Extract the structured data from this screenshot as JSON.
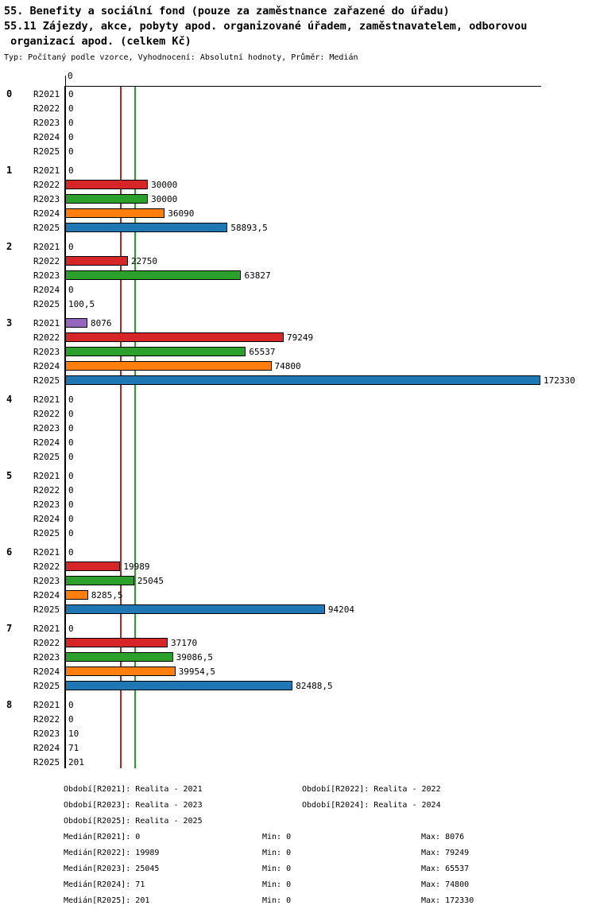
{
  "header": {
    "title_line1": "55. Benefity a sociální fond (pouze za zaměstnance zařazené do úřadu)",
    "title_line2": "55.11 Zájezdy, akce, pobyty apod. organizované úřadem, zaměstnavatelem, odborovou",
    "title_line3": " organizací apod. (celkem Kč)",
    "meta": "Typ: Počítaný podle vzorce, Vyhodnocení: Absolutní hodnoty, Průměr: Medián"
  },
  "chart_data": {
    "type": "bar",
    "orientation": "horizontal",
    "title": "55.11 Zájezdy, akce, pobyty apod. organizované úřadem, zaměstnavatelem, odborovou organizací apod. (celkem Kč)",
    "axis_origin_label": "0",
    "xlim": [
      0,
      172330
    ],
    "series": [
      "R2021",
      "R2022",
      "R2023",
      "R2024",
      "R2025"
    ],
    "series_colors": {
      "R2021": "#9467bd",
      "R2022": "#d62728",
      "R2023": "#2ca02c",
      "R2024": "#ff7f0e",
      "R2025": "#1f77b4"
    },
    "groups": [
      {
        "label": "0",
        "rows": [
          {
            "series": "R2021",
            "value": 0,
            "display": "0"
          },
          {
            "series": "R2022",
            "value": 0,
            "display": "0"
          },
          {
            "series": "R2023",
            "value": 0,
            "display": "0"
          },
          {
            "series": "R2024",
            "value": 0,
            "display": "0"
          },
          {
            "series": "R2025",
            "value": 0,
            "display": "0"
          }
        ]
      },
      {
        "label": "1",
        "rows": [
          {
            "series": "R2021",
            "value": 0,
            "display": "0"
          },
          {
            "series": "R2022",
            "value": 30000,
            "display": "30000"
          },
          {
            "series": "R2023",
            "value": 30000,
            "display": "30000"
          },
          {
            "series": "R2024",
            "value": 36090,
            "display": "36090"
          },
          {
            "series": "R2025",
            "value": 58893.5,
            "display": "58893,5"
          }
        ]
      },
      {
        "label": "2",
        "rows": [
          {
            "series": "R2021",
            "value": 0,
            "display": "0"
          },
          {
            "series": "R2022",
            "value": 22750,
            "display": "22750"
          },
          {
            "series": "R2023",
            "value": 63827,
            "display": "63827"
          },
          {
            "series": "R2024",
            "value": 0,
            "display": "0"
          },
          {
            "series": "R2025",
            "value": 100.5,
            "display": "100,5"
          }
        ]
      },
      {
        "label": "3",
        "rows": [
          {
            "series": "R2021",
            "value": 8076,
            "display": "8076"
          },
          {
            "series": "R2022",
            "value": 79249,
            "display": "79249"
          },
          {
            "series": "R2023",
            "value": 65537,
            "display": "65537"
          },
          {
            "series": "R2024",
            "value": 74800,
            "display": "74800"
          },
          {
            "series": "R2025",
            "value": 172330,
            "display": "172330"
          }
        ]
      },
      {
        "label": "4",
        "rows": [
          {
            "series": "R2021",
            "value": 0,
            "display": "0"
          },
          {
            "series": "R2022",
            "value": 0,
            "display": "0"
          },
          {
            "series": "R2023",
            "value": 0,
            "display": "0"
          },
          {
            "series": "R2024",
            "value": 0,
            "display": "0"
          },
          {
            "series": "R2025",
            "value": 0,
            "display": "0"
          }
        ]
      },
      {
        "label": "5",
        "rows": [
          {
            "series": "R2021",
            "value": 0,
            "display": "0"
          },
          {
            "series": "R2022",
            "value": 0,
            "display": "0"
          },
          {
            "series": "R2023",
            "value": 0,
            "display": "0"
          },
          {
            "series": "R2024",
            "value": 0,
            "display": "0"
          },
          {
            "series": "R2025",
            "value": 0,
            "display": "0"
          }
        ]
      },
      {
        "label": "6",
        "rows": [
          {
            "series": "R2021",
            "value": 0,
            "display": "0"
          },
          {
            "series": "R2022",
            "value": 19989,
            "display": "19989"
          },
          {
            "series": "R2023",
            "value": 25045,
            "display": "25045"
          },
          {
            "series": "R2024",
            "value": 8285.5,
            "display": "8285,5"
          },
          {
            "series": "R2025",
            "value": 94204,
            "display": "94204"
          }
        ]
      },
      {
        "label": "7",
        "rows": [
          {
            "series": "R2021",
            "value": 0,
            "display": "0"
          },
          {
            "series": "R2022",
            "value": 37170,
            "display": "37170"
          },
          {
            "series": "R2023",
            "value": 39086.5,
            "display": "39086,5"
          },
          {
            "series": "R2024",
            "value": 39954.5,
            "display": "39954,5"
          },
          {
            "series": "R2025",
            "value": 82488.5,
            "display": "82488,5"
          }
        ]
      },
      {
        "label": "8",
        "rows": [
          {
            "series": "R2021",
            "value": 0,
            "display": "0"
          },
          {
            "series": "R2022",
            "value": 0,
            "display": "0"
          },
          {
            "series": "R2023",
            "value": 10,
            "display": "10"
          },
          {
            "series": "R2024",
            "value": 71,
            "display": "71"
          },
          {
            "series": "R2025",
            "value": 201,
            "display": "201"
          }
        ]
      }
    ],
    "reference_lines": [
      {
        "series": "R2022",
        "value": 19989,
        "color": "#a23030"
      },
      {
        "series": "R2023",
        "value": 25045,
        "color": "#339933"
      }
    ]
  },
  "legend": {
    "items": [
      "Období[R2021]: Realita - 2021",
      "Období[R2022]: Realita - 2022",
      "Období[R2023]: Realita - 2023",
      "Období[R2024]: Realita - 2024",
      "Období[R2025]: Realita - 2025"
    ]
  },
  "stats": [
    {
      "median": "Medián[R2021]: 0",
      "min": "Min: 0",
      "max": "Max: 8076"
    },
    {
      "median": "Medián[R2022]: 19989",
      "min": "Min: 0",
      "max": "Max: 79249"
    },
    {
      "median": "Medián[R2023]: 25045",
      "min": "Min: 0",
      "max": "Max: 65537"
    },
    {
      "median": "Medián[R2024]: 71",
      "min": "Min: 0",
      "max": "Max: 74800"
    },
    {
      "median": "Medián[R2025]: 201",
      "min": "Min: 0",
      "max": "Max: 172330"
    }
  ]
}
